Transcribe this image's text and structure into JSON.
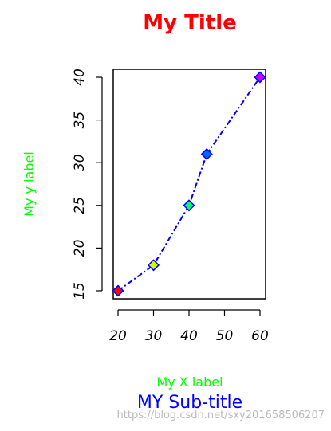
{
  "chart_data": {
    "type": "line",
    "title": "My Title",
    "subtitle": "MY Sub-title",
    "xlabel": "My X label",
    "ylabel": "My y label",
    "x": [
      20,
      30,
      40,
      45,
      60
    ],
    "y": [
      15,
      18,
      25,
      31,
      40
    ],
    "point_colors": [
      "#ff0000",
      "#ccff00",
      "#00ff66",
      "#0066ff",
      "#cc00ff"
    ],
    "point_border_color": "#0000ff",
    "line_color": "#0000ff",
    "line_style": "dotdash",
    "xlim": [
      20,
      60
    ],
    "ylim": [
      15,
      40
    ],
    "x_ticks": [
      20,
      30,
      40,
      50,
      60
    ],
    "y_ticks": [
      15,
      20,
      25,
      30,
      35,
      40
    ],
    "grid": false,
    "colors": {
      "title": "#ff0000",
      "subtitle": "#0000ff",
      "axis_labels": "#00ff00"
    }
  },
  "watermark": "https://blog.csdn.net/sxy201658506207"
}
